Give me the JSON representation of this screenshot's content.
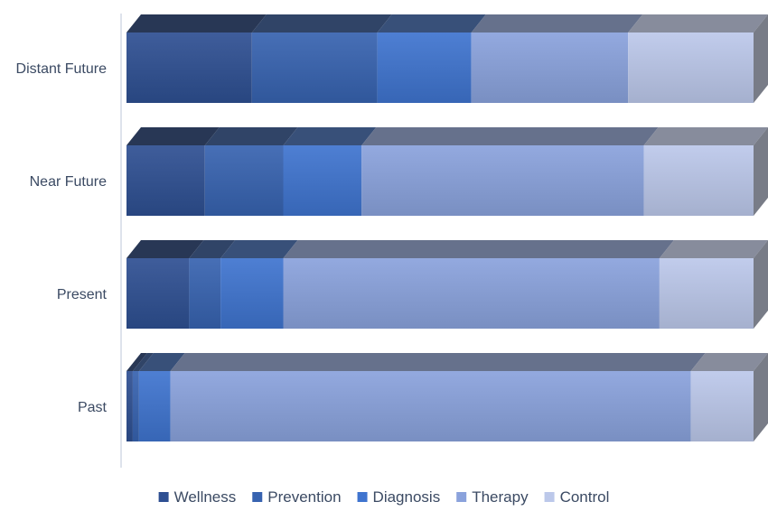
{
  "chart_data": {
    "type": "bar",
    "orientation": "horizontal",
    "stacked": "percent",
    "style": "3d",
    "title": "",
    "xlabel": "",
    "ylabel": "",
    "xlim": [
      0,
      100
    ],
    "grid": false,
    "legend_position": "bottom",
    "categories": [
      "Distant Future",
      "Near Future",
      "Present",
      "Past"
    ],
    "series": [
      {
        "name": "Wellness",
        "color": "#2e4f92",
        "values": [
          20,
          12.5,
          10,
          1
        ]
      },
      {
        "name": "Prevention",
        "color": "#3763b0",
        "values": [
          20,
          12.5,
          5,
          1
        ]
      },
      {
        "name": "Diagnosis",
        "color": "#3f74cf",
        "values": [
          15,
          12.5,
          10,
          5
        ]
      },
      {
        "name": "Therapy",
        "color": "#8aa2dc",
        "values": [
          25,
          45,
          60,
          83
        ]
      },
      {
        "name": "Control",
        "color": "#bcc8ea",
        "values": [
          20,
          17.5,
          15,
          10
        ]
      }
    ]
  }
}
